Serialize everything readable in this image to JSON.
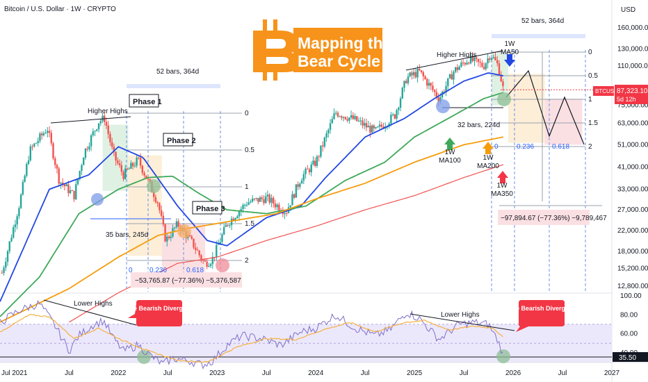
{
  "header": {
    "symbol_line": "Bitcoin / U.S. Dollar · 1W · CRYPTO",
    "currency": "USD"
  },
  "banner": {
    "line1": "Mapping the",
    "line2": "Bear Cycle",
    "orange": "#f7931a"
  },
  "colors": {
    "up": "#26a69a",
    "down": "#ef5350",
    "ma50": "#2247e3",
    "ma100": "#3ea85a",
    "ma200": "#f59c0b",
    "ma350": "#ef5350",
    "rsi": "#7e6fc9",
    "rsi_ma": "#f4b040",
    "rsi_band": "#ece8fb",
    "green_zone": "#dff1e3",
    "orange_zone": "#fdeed8",
    "red_zone": "#fbe0e3",
    "blue_circle": "#7e9be8",
    "green_circle": "#8dbf95",
    "orange_circle": "#f4b067",
    "red_circle": "#f08b97",
    "bubble_red": "#f23645"
  },
  "chart_data": {
    "type": "candlestick",
    "title": "Bitcoin / U.S. Dollar · 1W · CRYPTO",
    "y_scale": "log",
    "y_ticks": [
      "160,000.00",
      "130,000.00",
      "110,000.00",
      "87,323.10",
      "75,000.00",
      "63,000.00",
      "51,000.00",
      "41,000.00",
      "33,000.00",
      "27,000.00",
      "22,000.00",
      "18,000.00",
      "15,200.00",
      "12,800.00"
    ],
    "x_ticks": [
      "Jul",
      "2021",
      "Jul",
      "2022",
      "Jul",
      "2023",
      "Jul",
      "2024",
      "Jul",
      "2025",
      "Jul",
      "2026",
      "Jul",
      "2027"
    ],
    "last_price": {
      "value": "87,323.10",
      "symbol": "BTCUSD",
      "countdown": "5d 12h"
    },
    "price_path": [
      [
        2020.8,
        13500
      ],
      [
        2021.0,
        29000
      ],
      [
        2021.1,
        48000
      ],
      [
        2021.28,
        60000
      ],
      [
        2021.4,
        36000
      ],
      [
        2021.55,
        31000
      ],
      [
        2021.65,
        47000
      ],
      [
        2021.8,
        64000
      ],
      [
        2021.86,
        66000
      ],
      [
        2021.95,
        46000
      ],
      [
        2022.05,
        38000
      ],
      [
        2022.2,
        44000
      ],
      [
        2022.4,
        29000
      ],
      [
        2022.48,
        20000
      ],
      [
        2022.6,
        23500
      ],
      [
        2022.75,
        19500
      ],
      [
        2022.87,
        16000
      ],
      [
        2022.95,
        16600
      ],
      [
        2023.1,
        23500
      ],
      [
        2023.3,
        29000
      ],
      [
        2023.5,
        30300
      ],
      [
        2023.7,
        26500
      ],
      [
        2023.85,
        37000
      ],
      [
        2024.0,
        43000
      ],
      [
        2024.2,
        70000
      ],
      [
        2024.4,
        65000
      ],
      [
        2024.6,
        58000
      ],
      [
        2024.8,
        68000
      ],
      [
        2024.92,
        98000
      ],
      [
        2025.05,
        104000
      ],
      [
        2025.25,
        80000
      ],
      [
        2025.4,
        105000
      ],
      [
        2025.55,
        118000
      ],
      [
        2025.7,
        110000
      ],
      [
        2025.77,
        124000
      ],
      [
        2025.85,
        110000
      ],
      [
        2025.9,
        87323
      ]
    ],
    "moving_averages": [
      {
        "name": "1W MA50",
        "points": [
          [
            2020.8,
            11000
          ],
          [
            2021.3,
            33000
          ],
          [
            2021.7,
            38000
          ],
          [
            2022.0,
            50000
          ],
          [
            2022.25,
            45000
          ],
          [
            2022.6,
            28000
          ],
          [
            2022.9,
            20000
          ],
          [
            2023.1,
            19000
          ],
          [
            2023.5,
            25000
          ],
          [
            2023.85,
            28000
          ],
          [
            2024.1,
            37000
          ],
          [
            2024.5,
            55000
          ],
          [
            2024.9,
            66000
          ],
          [
            2025.2,
            80000
          ],
          [
            2025.5,
            95000
          ],
          [
            2025.75,
            103000
          ],
          [
            2025.9,
            100000
          ]
        ]
      },
      {
        "name": "1W MA100",
        "points": [
          [
            2020.8,
            9500
          ],
          [
            2021.2,
            14000
          ],
          [
            2021.6,
            26000
          ],
          [
            2022.0,
            33000
          ],
          [
            2022.3,
            37000
          ],
          [
            2022.55,
            37500
          ],
          [
            2022.8,
            32000
          ],
          [
            2023.1,
            27000
          ],
          [
            2023.5,
            26000
          ],
          [
            2023.9,
            28000
          ],
          [
            2024.3,
            36000
          ],
          [
            2024.7,
            43000
          ],
          [
            2025.0,
            55000
          ],
          [
            2025.4,
            68000
          ],
          [
            2025.7,
            80000
          ],
          [
            2025.9,
            85000
          ]
        ]
      },
      {
        "name": "1W MA200",
        "points": [
          [
            2020.8,
            9000
          ],
          [
            2021.5,
            12500
          ],
          [
            2022.0,
            17000
          ],
          [
            2022.4,
            21000
          ],
          [
            2022.7,
            22500
          ],
          [
            2023.1,
            24000
          ],
          [
            2023.6,
            26000
          ],
          [
            2024.0,
            30000
          ],
          [
            2024.5,
            35000
          ],
          [
            2025.0,
            43000
          ],
          [
            2025.5,
            51000
          ],
          [
            2025.9,
            55000
          ]
        ]
      },
      {
        "name": "1W MA350",
        "points": [
          [
            2021.5,
            9000
          ],
          [
            2022.0,
            12000
          ],
          [
            2022.6,
            16000
          ],
          [
            2023.0,
            17000
          ],
          [
            2023.5,
            20000
          ],
          [
            2024.0,
            23000
          ],
          [
            2024.5,
            27000
          ],
          [
            2025.0,
            31000
          ],
          [
            2025.5,
            37000
          ],
          [
            2025.9,
            42000
          ]
        ]
      }
    ],
    "rsi": {
      "ticks": [
        "100.00",
        "80.00",
        "60.00",
        "40.00",
        "35.50"
      ],
      "line": [
        [
          2020.8,
          72
        ],
        [
          2021.0,
          85
        ],
        [
          2021.2,
          92
        ],
        [
          2021.35,
          70
        ],
        [
          2021.5,
          42
        ],
        [
          2021.6,
          58
        ],
        [
          2021.75,
          70
        ],
        [
          2021.85,
          74
        ],
        [
          2021.95,
          55
        ],
        [
          2022.05,
          42
        ],
        [
          2022.2,
          48
        ],
        [
          2022.35,
          35
        ],
        [
          2022.45,
          28
        ],
        [
          2022.55,
          34
        ],
        [
          2022.7,
          32
        ],
        [
          2022.85,
          27
        ],
        [
          2022.95,
          31
        ],
        [
          2023.1,
          48
        ],
        [
          2023.25,
          58
        ],
        [
          2023.45,
          55
        ],
        [
          2023.65,
          48
        ],
        [
          2023.85,
          62
        ],
        [
          2024.0,
          66
        ],
        [
          2024.2,
          80
        ],
        [
          2024.4,
          66
        ],
        [
          2024.6,
          58
        ],
        [
          2024.75,
          64
        ],
        [
          2024.92,
          83
        ],
        [
          2025.05,
          76
        ],
        [
          2025.25,
          54
        ],
        [
          2025.45,
          70
        ],
        [
          2025.6,
          72
        ],
        [
          2025.75,
          70
        ],
        [
          2025.85,
          52
        ],
        [
          2025.9,
          37
        ]
      ],
      "ma": [
        [
          2020.8,
          62
        ],
        [
          2021.1,
          80
        ],
        [
          2021.3,
          78
        ],
        [
          2021.55,
          55
        ],
        [
          2021.8,
          66
        ],
        [
          2022.0,
          55
        ],
        [
          2022.3,
          42
        ],
        [
          2022.6,
          32
        ],
        [
          2022.9,
          30
        ],
        [
          2023.2,
          46
        ],
        [
          2023.5,
          55
        ],
        [
          2023.8,
          54
        ],
        [
          2024.1,
          65
        ],
        [
          2024.35,
          72
        ],
        [
          2024.6,
          62
        ],
        [
          2024.9,
          72
        ],
        [
          2025.1,
          74
        ],
        [
          2025.35,
          64
        ],
        [
          2025.6,
          68
        ],
        [
          2025.8,
          66
        ],
        [
          2025.9,
          56
        ]
      ]
    },
    "fibonacci_cycle_2022": {
      "levels": [
        "0",
        "0.5",
        "1",
        "1.5",
        "2"
      ],
      "bottom_scale": [
        "0",
        "0.236",
        "0.618"
      ]
    },
    "fibonacci_cycle_2025": {
      "levels": [
        "0",
        "0.5",
        "1",
        "1.5",
        "2"
      ],
      "bottom_scale": [
        "0",
        "0.236",
        "0.618"
      ]
    },
    "annotations": {
      "higher_highs": "Higher Highs",
      "lower_highs": "Lower Highs",
      "phase1": "Phase 1",
      "phase2": "Phase 2",
      "phase3": "Phase 3",
      "bars_364_a": "52 bars, 364d",
      "bars_364_b": "52 bars, 364d",
      "bars_245": "35 bars, 245d",
      "bars_224": "32 bars, 224d",
      "drop_2022": "−53,765.87 (−77.36%) −5,376,587",
      "drop_2026": "−97,894.67 (−77.36%) −9,789,467",
      "bearish_div": "Huge Bearish Divergence",
      "ma50_line1": "1W",
      "ma50_line2": "MA50",
      "ma100_line1": "1W",
      "ma100_line2": "MA100",
      "ma200_line1": "1W",
      "ma200_line2": "MA200",
      "ma350_line1": "1W",
      "ma350_line2": "MA350"
    }
  }
}
